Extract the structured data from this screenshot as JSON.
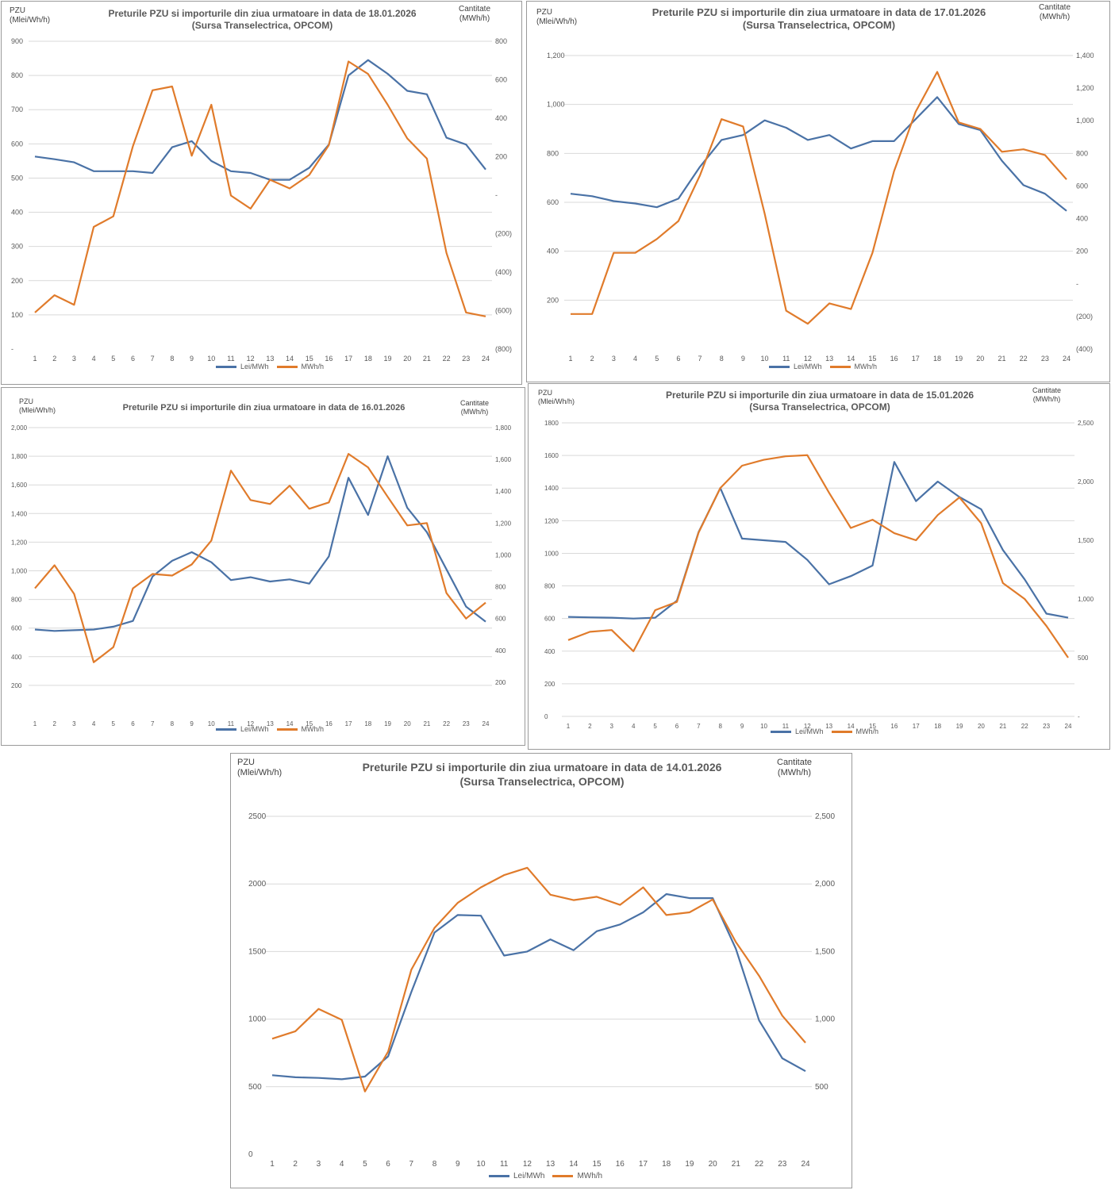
{
  "colors": {
    "price": "#4a72a6",
    "volume": "#e07b2b",
    "grid": "#d9d9d9",
    "tick": "#595959"
  },
  "panels": [
    {
      "title_line1": "Preturile PZU si  importurile din ziua urmatoare in data de 18.01.2026",
      "title_line2": "(Sursa Transelectrica, OPCOM)",
      "left_axis_title_1": "PZU",
      "left_axis_title_2": "(Mlei/Wh/h)",
      "right_axis_title_1": "Cantitate",
      "right_axis_title_2": "(MWh/h)",
      "legend_price": "Lei/MWh",
      "legend_volume": "MWh/h"
    },
    {
      "title_line1": "Preturile PZU si  importurile din ziua urmatoare in data de 17.01.2026",
      "title_line2": "(Sursa Transelectrica, OPCOM)",
      "left_axis_title_1": "PZU",
      "left_axis_title_2": "(Mlei/Wh/h)",
      "right_axis_title_1": "Cantitate",
      "right_axis_title_2": "(MWh/h)",
      "legend_price": "Lei/MWh",
      "legend_volume": "MWh/h"
    },
    {
      "title_line1": "Preturile PZU si  importurile din ziua urmatoare in data de 16.01.2026",
      "title_line2": "",
      "left_axis_title_1": "PZU",
      "left_axis_title_2": "(Mlei/Wh/h)",
      "right_axis_title_1": "Cantitate",
      "right_axis_title_2": "(MWh/h)",
      "legend_price": "Lei/MWh",
      "legend_volume": "MWh/h"
    },
    {
      "title_line1": "Preturile PZU si  importurile din ziua urmatoare in data de 15.01.2026",
      "title_line2": "(Sursa Transelectrica, OPCOM)",
      "left_axis_title_1": "PZU",
      "left_axis_title_2": "(Mlei/Wh/h)",
      "right_axis_title_1": "Cantitate",
      "right_axis_title_2": "(MWh/h)",
      "legend_price": "Lei/MWh",
      "legend_volume": "MWh/h"
    },
    {
      "title_line1": "Preturile PZU si  importurile din ziua urmatoare in data de 14.01.2026",
      "title_line2": "(Sursa Transelectrica, OPCOM)",
      "left_axis_title_1": "PZU",
      "left_axis_title_2": "(Mlei/Wh/h)",
      "right_axis_title_1": "Cantitate",
      "right_axis_title_2": "(MWh/h)",
      "legend_price": "Lei/MWh",
      "legend_volume": "MWh/h"
    }
  ],
  "chart_data": [
    {
      "type": "line",
      "title": "Preturile PZU si  importurile din ziua urmatoare in data de 18.01.2026",
      "subtitle": "(Sursa Transelectrica, OPCOM)",
      "x": [
        1,
        2,
        3,
        4,
        5,
        6,
        7,
        8,
        9,
        10,
        11,
        12,
        13,
        14,
        15,
        16,
        17,
        18,
        19,
        20,
        21,
        22,
        23,
        24
      ],
      "ylim": [
        0,
        900
      ],
      "yticks": [
        0,
        100,
        200,
        300,
        400,
        500,
        600,
        700,
        800,
        900
      ],
      "ytick_labels": [
        "-",
        "100",
        "200",
        "300",
        "400",
        "500",
        "600",
        "700",
        "800",
        "900"
      ],
      "y2lim": [
        -800,
        800
      ],
      "y2ticks": [
        -800,
        -600,
        -400,
        -200,
        0,
        200,
        400,
        600,
        800
      ],
      "y2tick_labels": [
        "(800)",
        "(600)",
        "(400)",
        "(200)",
        "-",
        "200",
        "400",
        "600",
        "800"
      ],
      "grid": true,
      "legend": "bottom",
      "series": [
        {
          "name": "Lei/MWh",
          "axis": "left",
          "color": "#4a72a6",
          "values": [
            563,
            555,
            546,
            520,
            520,
            520,
            515,
            590,
            608,
            550,
            520,
            515,
            495,
            495,
            530,
            598,
            800,
            845,
            805,
            755,
            745,
            618,
            598,
            525
          ]
        },
        {
          "name": "MWh/h",
          "axis": "right",
          "color": "#e07b2b",
          "values": [
            -610,
            -520,
            -570,
            -165,
            -110,
            255,
            545,
            565,
            205,
            470,
            -2,
            -70,
            80,
            35,
            105,
            260,
            695,
            630,
            470,
            295,
            190,
            -300,
            -610,
            -630
          ]
        }
      ]
    },
    {
      "type": "line",
      "title": "Preturile PZU si  importurile din ziua urmatoare in data de 17.01.2026",
      "subtitle": "(Sursa Transelectrica, OPCOM)",
      "x": [
        1,
        2,
        3,
        4,
        5,
        6,
        7,
        8,
        9,
        10,
        11,
        12,
        13,
        14,
        15,
        16,
        17,
        18,
        19,
        20,
        21,
        22,
        23,
        24
      ],
      "ylim": [
        0,
        1200
      ],
      "yticks": [
        200,
        400,
        600,
        800,
        1000,
        1200
      ],
      "ytick_labels": [
        "200",
        "400",
        "600",
        "800",
        "1,000",
        "1,200"
      ],
      "y2lim": [
        -400,
        1400
      ],
      "y2ticks": [
        -400,
        -200,
        0,
        200,
        400,
        600,
        800,
        1000,
        1200,
        1400
      ],
      "y2tick_labels": [
        "(400)",
        "(200)",
        "-",
        "200",
        "400",
        "600",
        "800",
        "1,000",
        "1,200",
        "1,400"
      ],
      "grid": true,
      "legend": "bottom",
      "series": [
        {
          "name": "Lei/MWh",
          "axis": "left",
          "color": "#4a72a6",
          "values": [
            635,
            625,
            605,
            595,
            580,
            615,
            745,
            855,
            875,
            935,
            905,
            855,
            875,
            820,
            850,
            850,
            940,
            1030,
            920,
            895,
            770,
            670,
            635,
            565
          ]
        },
        {
          "name": "MWh/h",
          "axis": "right",
          "color": "#e07b2b",
          "values": [
            -185,
            -185,
            190,
            190,
            275,
            385,
            665,
            1010,
            965,
            430,
            -165,
            -245,
            -120,
            -155,
            190,
            690,
            1055,
            1300,
            990,
            950,
            810,
            825,
            790,
            640
          ]
        }
      ]
    },
    {
      "type": "line",
      "title": "Preturile PZU si  importurile din ziua urmatoare in data de 16.01.2026",
      "x": [
        1,
        2,
        3,
        4,
        5,
        6,
        7,
        8,
        9,
        10,
        11,
        12,
        13,
        14,
        15,
        16,
        17,
        18,
        19,
        20,
        21,
        22,
        23,
        24
      ],
      "ylim": [
        0,
        2000
      ],
      "yticks": [
        200,
        400,
        600,
        800,
        1000,
        1200,
        1400,
        1600,
        1800,
        2000
      ],
      "ytick_labels": [
        "200",
        "400",
        "600",
        "800",
        "1,000",
        "1,200",
        "1,400",
        "1,600",
        "1,800",
        "2,000"
      ],
      "y2lim": [
        0,
        1800
      ],
      "y2ticks": [
        200,
        400,
        600,
        800,
        1000,
        1200,
        1400,
        1600,
        1800
      ],
      "y2tick_labels": [
        "200",
        "400",
        "600",
        "800",
        "1,000",
        "1,200",
        "1,400",
        "1,600",
        "1,800"
      ],
      "grid": true,
      "legend": "bottom",
      "series": [
        {
          "name": "Lei/MWh",
          "axis": "left",
          "color": "#4a72a6",
          "values": [
            590,
            580,
            585,
            590,
            610,
            650,
            960,
            1070,
            1130,
            1060,
            935,
            955,
            925,
            940,
            910,
            1100,
            1650,
            1390,
            1800,
            1440,
            1270,
            1010,
            750,
            645
          ]
        },
        {
          "name": "MWh/h",
          "axis": "right",
          "color": "#e07b2b",
          "values": [
            790,
            935,
            755,
            325,
            420,
            790,
            880,
            870,
            940,
            1090,
            1530,
            1345,
            1320,
            1435,
            1290,
            1330,
            1635,
            1550,
            1365,
            1185,
            1200,
            760,
            600,
            700
          ]
        }
      ]
    },
    {
      "type": "line",
      "title": "Preturile PZU si  importurile din ziua urmatoare in data de 15.01.2026",
      "subtitle": "(Sursa Transelectrica, OPCOM)",
      "x": [
        1,
        2,
        3,
        4,
        5,
        6,
        7,
        8,
        9,
        10,
        11,
        12,
        13,
        14,
        15,
        16,
        17,
        18,
        19,
        20,
        21,
        22,
        23,
        24
      ],
      "ylim": [
        0,
        1800
      ],
      "yticks": [
        0,
        200,
        400,
        600,
        800,
        1000,
        1200,
        1400,
        1600,
        1800
      ],
      "ytick_labels": [
        "0",
        "200",
        "400",
        "600",
        "800",
        "1000",
        "1200",
        "1400",
        "1600",
        "1800"
      ],
      "y2lim": [
        0,
        2500
      ],
      "y2ticks": [
        0,
        500,
        1000,
        1500,
        2000,
        2500
      ],
      "y2tick_labels": [
        "-",
        "500",
        "1,000",
        "1,500",
        "2,000",
        "2,500"
      ],
      "grid": true,
      "legend": "bottom",
      "series": [
        {
          "name": "Lei/MWh",
          "axis": "left",
          "color": "#4a72a6",
          "values": [
            610,
            607,
            605,
            600,
            605,
            710,
            1130,
            1400,
            1090,
            1080,
            1070,
            960,
            810,
            860,
            925,
            1560,
            1320,
            1440,
            1345,
            1270,
            1020,
            840,
            630,
            605
          ]
        },
        {
          "name": "MWh/h",
          "axis": "right",
          "color": "#e07b2b",
          "values": [
            650,
            720,
            735,
            555,
            905,
            975,
            1565,
            1945,
            2135,
            2185,
            2215,
            2225,
            1905,
            1605,
            1675,
            1560,
            1500,
            1715,
            1865,
            1645,
            1135,
            1000,
            770,
            500
          ]
        }
      ]
    },
    {
      "type": "line",
      "title": "Preturile PZU si  importurile din ziua urmatoare in data de 14.01.2026",
      "subtitle": "(Sursa Transelectrica, OPCOM)",
      "x": [
        1,
        2,
        3,
        4,
        5,
        6,
        7,
        8,
        9,
        10,
        11,
        12,
        13,
        14,
        15,
        16,
        17,
        18,
        19,
        20,
        21,
        22,
        23,
        24
      ],
      "ylim": [
        0,
        2500
      ],
      "yticks": [
        0,
        500,
        1000,
        1500,
        2000,
        2500
      ],
      "ytick_labels": [
        "0",
        "500",
        "1000",
        "1500",
        "2000",
        "2500"
      ],
      "y2lim": [
        0,
        2500
      ],
      "y2ticks": [
        500,
        1000,
        1500,
        2000,
        2500
      ],
      "y2tick_labels": [
        "500",
        "1,000",
        "1,500",
        "2,000",
        "2,500"
      ],
      "grid": true,
      "legend": "bottom",
      "series": [
        {
          "name": "Lei/MWh",
          "axis": "left",
          "color": "#4a72a6",
          "values": [
            585,
            570,
            565,
            555,
            575,
            725,
            1200,
            1640,
            1770,
            1765,
            1470,
            1500,
            1590,
            1510,
            1650,
            1700,
            1790,
            1925,
            1895,
            1895,
            1520,
            990,
            710,
            615
          ]
        },
        {
          "name": "MWh/h",
          "axis": "right",
          "color": "#e07b2b",
          "values": [
            855,
            910,
            1075,
            995,
            465,
            760,
            1365,
            1675,
            1860,
            1975,
            2065,
            2120,
            1920,
            1880,
            1905,
            1845,
            1975,
            1770,
            1790,
            1885,
            1570,
            1320,
            1025,
            825
          ]
        }
      ]
    }
  ]
}
